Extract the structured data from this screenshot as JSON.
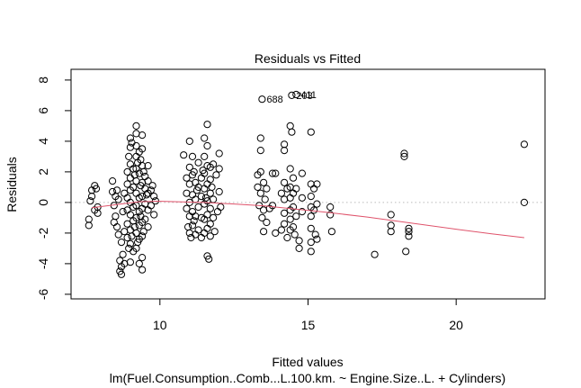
{
  "chart_data": {
    "type": "scatter",
    "title": "Residuals vs Fitted",
    "xlabel": "Fitted values",
    "ylabel": "Residuals",
    "subtitle": "lm(Fuel.Consumption..Comb...L.100.km. ~ Engine.Size..L. + Cylinders)",
    "xlim": [
      7,
      23
    ],
    "ylim": [
      -6.3,
      8.7
    ],
    "x_ticks": [
      10,
      15,
      20
    ],
    "y_ticks": [
      -6,
      -4,
      -2,
      0,
      2,
      4,
      6,
      8
    ],
    "reference_line": {
      "y": 0,
      "style": "dotted",
      "color": "#bbbbbb"
    },
    "smooth": {
      "color": "#df536b",
      "x": [
        7.7,
        8.5,
        9.3,
        9.9,
        10.6,
        11.5,
        12.5,
        13.5,
        14.5,
        15.5,
        17.0,
        18.5,
        20.0,
        21.2,
        22.3
      ],
      "y": [
        -0.35,
        -0.15,
        0.05,
        0.08,
        0.05,
        0.0,
        -0.1,
        -0.22,
        -0.42,
        -0.62,
        -0.95,
        -1.35,
        -1.75,
        -2.05,
        -2.3
      ]
    },
    "outlier_labels": [
      {
        "text": "688",
        "x": 13.45,
        "y": 6.75
      },
      {
        "text": "203",
        "x": 14.45,
        "y": 7.0
      },
      {
        "text": "411",
        "x": 14.6,
        "y": 7.05
      }
    ],
    "series": [
      {
        "points": [
          [
            7.6,
            -1.1
          ],
          [
            7.6,
            -1.5
          ],
          [
            7.65,
            0.1
          ],
          [
            7.7,
            0.8
          ],
          [
            7.7,
            0.4
          ],
          [
            7.8,
            1.1
          ],
          [
            7.8,
            -0.5
          ],
          [
            7.85,
            0.9
          ],
          [
            7.9,
            -0.3
          ],
          [
            7.9,
            -0.7
          ],
          [
            8.4,
            0.7
          ],
          [
            8.4,
            1.4
          ],
          [
            8.45,
            -0.2
          ],
          [
            8.45,
            -1.3
          ],
          [
            8.5,
            0.4
          ],
          [
            8.5,
            -0.9
          ],
          [
            8.55,
            0.8
          ],
          [
            8.55,
            -1.6
          ],
          [
            8.6,
            0.2
          ],
          [
            8.6,
            -2.1
          ],
          [
            8.65,
            -4.5
          ],
          [
            8.65,
            -3.8
          ],
          [
            8.7,
            -4.2
          ],
          [
            8.7,
            -4.7
          ],
          [
            8.7,
            -2.6
          ],
          [
            8.75,
            -3.4
          ],
          [
            8.75,
            -0.6
          ],
          [
            8.8,
            -1.9
          ],
          [
            8.8,
            0.6
          ],
          [
            8.8,
            -4.0
          ],
          [
            8.9,
            2.0
          ],
          [
            8.9,
            1.2
          ],
          [
            8.9,
            0.3
          ],
          [
            8.9,
            -0.5
          ],
          [
            8.9,
            -1.4
          ],
          [
            8.9,
            -2.3
          ],
          [
            8.95,
            3.0
          ],
          [
            8.95,
            -3.0
          ],
          [
            9.0,
            4.2
          ],
          [
            9.0,
            3.6
          ],
          [
            9.0,
            2.5
          ],
          [
            9.0,
            1.6
          ],
          [
            9.0,
            0.8
          ],
          [
            9.0,
            0.0
          ],
          [
            9.0,
            -0.8
          ],
          [
            9.0,
            -1.8
          ],
          [
            9.0,
            -2.7
          ],
          [
            9.0,
            -3.9
          ],
          [
            9.05,
            3.9
          ],
          [
            9.05,
            -2.2
          ],
          [
            9.1,
            2.2
          ],
          [
            9.1,
            1.0
          ],
          [
            9.1,
            -0.3
          ],
          [
            9.1,
            -1.2
          ],
          [
            9.1,
            -3.2
          ],
          [
            9.15,
            1.8
          ],
          [
            9.15,
            -1.6
          ],
          [
            9.2,
            5.0
          ],
          [
            9.2,
            4.5
          ],
          [
            9.2,
            3.7
          ],
          [
            9.2,
            3.0
          ],
          [
            9.2,
            2.2
          ],
          [
            9.2,
            1.4
          ],
          [
            9.2,
            0.6
          ],
          [
            9.2,
            -0.2
          ],
          [
            9.2,
            -1.0
          ],
          [
            9.2,
            -2.0
          ],
          [
            9.2,
            -3.0
          ],
          [
            9.25,
            2.6
          ],
          [
            9.25,
            -2.6
          ],
          [
            9.3,
            3.3
          ],
          [
            9.3,
            1.9
          ],
          [
            9.3,
            0.3
          ],
          [
            9.3,
            -0.6
          ],
          [
            9.3,
            -1.5
          ],
          [
            9.3,
            -2.4
          ],
          [
            9.3,
            -4.0
          ],
          [
            9.35,
            2.8
          ],
          [
            9.35,
            1.1
          ],
          [
            9.35,
            -0.9
          ],
          [
            9.4,
            4.4
          ],
          [
            9.4,
            3.5
          ],
          [
            9.4,
            2.4
          ],
          [
            9.4,
            1.3
          ],
          [
            9.4,
            0.4
          ],
          [
            9.4,
            -0.4
          ],
          [
            9.4,
            -1.3
          ],
          [
            9.4,
            -2.2
          ],
          [
            9.4,
            -3.6
          ],
          [
            9.4,
            -4.4
          ],
          [
            9.45,
            2.0
          ],
          [
            9.45,
            -1.9
          ],
          [
            9.5,
            1.7
          ],
          [
            9.5,
            0.9
          ],
          [
            9.5,
            -0.1
          ],
          [
            9.5,
            -1.1
          ],
          [
            9.55,
            0.5
          ],
          [
            9.6,
            2.4
          ],
          [
            9.6,
            1.4
          ],
          [
            9.6,
            0.6
          ],
          [
            9.6,
            -0.5
          ],
          [
            9.6,
            -1.6
          ],
          [
            9.7,
            0.8
          ],
          [
            9.7,
            -0.2
          ],
          [
            9.75,
            1.1
          ],
          [
            9.8,
            0.4
          ],
          [
            9.8,
            -0.8
          ],
          [
            9.85,
            0.1
          ],
          [
            10.8,
            3.1
          ],
          [
            10.9,
            1.6
          ],
          [
            10.9,
            0.6
          ],
          [
            10.9,
            -0.4
          ],
          [
            10.95,
            -1.6
          ],
          [
            11.0,
            4.0
          ],
          [
            11.0,
            2.3
          ],
          [
            11.0,
            1.2
          ],
          [
            11.0,
            0.0
          ],
          [
            11.0,
            -0.9
          ],
          [
            11.0,
            -2.0
          ],
          [
            11.05,
            -2.3
          ],
          [
            11.1,
            3.0
          ],
          [
            11.1,
            1.8
          ],
          [
            11.1,
            0.5
          ],
          [
            11.1,
            -0.6
          ],
          [
            11.1,
            -1.5
          ],
          [
            11.15,
            2.0
          ],
          [
            11.15,
            -1.2
          ],
          [
            11.2,
            1.3
          ],
          [
            11.2,
            0.2
          ],
          [
            11.2,
            -0.9
          ],
          [
            11.2,
            -2.1
          ],
          [
            11.25,
            0.8
          ],
          [
            11.3,
            2.6
          ],
          [
            11.3,
            1.0
          ],
          [
            11.3,
            -0.3
          ],
          [
            11.3,
            -1.8
          ],
          [
            11.4,
            1.6
          ],
          [
            11.4,
            0.4
          ],
          [
            11.4,
            -1.0
          ],
          [
            11.4,
            -2.3
          ],
          [
            11.45,
            2.1
          ],
          [
            11.5,
            4.2
          ],
          [
            11.5,
            3.0
          ],
          [
            11.5,
            1.9
          ],
          [
            11.5,
            0.9
          ],
          [
            11.5,
            -0.1
          ],
          [
            11.5,
            -1.1
          ],
          [
            11.5,
            -2.0
          ],
          [
            11.55,
            0.3
          ],
          [
            11.6,
            5.1
          ],
          [
            11.6,
            3.7
          ],
          [
            11.6,
            2.4
          ],
          [
            11.6,
            1.2
          ],
          [
            11.6,
            0.1
          ],
          [
            11.6,
            -0.8
          ],
          [
            11.6,
            -1.7
          ],
          [
            11.6,
            -3.5
          ],
          [
            11.65,
            -3.7
          ],
          [
            11.7,
            2.3
          ],
          [
            11.7,
            1.5
          ],
          [
            11.7,
            0.6
          ],
          [
            11.7,
            -0.4
          ],
          [
            11.7,
            -1.4
          ],
          [
            11.7,
            -2.2
          ],
          [
            11.75,
            1.0
          ],
          [
            11.8,
            2.5
          ],
          [
            11.8,
            0.2
          ],
          [
            11.8,
            -1.0
          ],
          [
            11.85,
            -1.9
          ],
          [
            11.9,
            1.8
          ],
          [
            11.95,
            -0.6
          ],
          [
            12.0,
            2.2
          ],
          [
            12.0,
            3.2
          ],
          [
            12.0,
            0.7
          ],
          [
            12.05,
            -0.3
          ],
          [
            13.3,
            1.8
          ],
          [
            13.3,
            1.0
          ],
          [
            13.35,
            -0.2
          ],
          [
            13.4,
            4.2
          ],
          [
            13.4,
            3.4
          ],
          [
            13.4,
            2.0
          ],
          [
            13.4,
            0.6
          ],
          [
            13.45,
            -1.0
          ],
          [
            13.5,
            1.3
          ],
          [
            13.5,
            -0.5
          ],
          [
            13.5,
            -1.9
          ],
          [
            13.55,
            0.2
          ],
          [
            13.6,
            0.9
          ],
          [
            13.6,
            -1.3
          ],
          [
            13.7,
            -0.4
          ],
          [
            13.8,
            1.9
          ],
          [
            13.8,
            -0.2
          ],
          [
            13.9,
            1.9
          ],
          [
            13.9,
            -2.0
          ],
          [
            14.1,
            0.6
          ],
          [
            14.1,
            -1.8
          ],
          [
            14.2,
            3.8
          ],
          [
            14.2,
            3.4
          ],
          [
            14.2,
            1.3
          ],
          [
            14.2,
            0.2
          ],
          [
            14.2,
            -0.7
          ],
          [
            14.2,
            -1.4
          ],
          [
            14.3,
            0.9
          ],
          [
            14.3,
            -2.3
          ],
          [
            14.4,
            5.0
          ],
          [
            14.4,
            2.2
          ],
          [
            14.4,
            1.0
          ],
          [
            14.4,
            0.3
          ],
          [
            14.4,
            -0.5
          ],
          [
            14.4,
            -1.1
          ],
          [
            14.4,
            -1.8
          ],
          [
            14.45,
            4.6
          ],
          [
            14.5,
            1.6
          ],
          [
            14.5,
            0.6
          ],
          [
            14.5,
            -0.3
          ],
          [
            14.5,
            -1.6
          ],
          [
            14.55,
            -2.1
          ],
          [
            14.6,
            0.9
          ],
          [
            14.6,
            -0.9
          ],
          [
            14.7,
            -2.5
          ],
          [
            14.7,
            -3.0
          ],
          [
            14.8,
            1.9
          ],
          [
            14.8,
            0.3
          ],
          [
            14.8,
            -0.6
          ],
          [
            15.1,
            4.6
          ],
          [
            15.1,
            1.2
          ],
          [
            15.1,
            0.4
          ],
          [
            15.1,
            -0.3
          ],
          [
            15.1,
            -0.9
          ],
          [
            15.1,
            -1.7
          ],
          [
            15.1,
            -2.6
          ],
          [
            15.1,
            -3.2
          ],
          [
            15.2,
            0.9
          ],
          [
            15.2,
            -0.5
          ],
          [
            15.25,
            -2.1
          ],
          [
            15.3,
            1.2
          ],
          [
            15.3,
            -0.1
          ],
          [
            15.3,
            -2.4
          ],
          [
            15.75,
            -0.3
          ],
          [
            15.75,
            -0.8
          ],
          [
            15.8,
            -1.9
          ],
          [
            17.25,
            -3.4
          ],
          [
            17.8,
            -0.8
          ],
          [
            17.8,
            -1.5
          ],
          [
            17.8,
            -1.9
          ],
          [
            18.25,
            3.2
          ],
          [
            18.25,
            3.0
          ],
          [
            18.3,
            -3.2
          ],
          [
            18.4,
            -1.7
          ],
          [
            18.4,
            -2.2
          ],
          [
            18.4,
            -1.9
          ],
          [
            22.3,
            3.8
          ],
          [
            22.3,
            0.0
          ],
          [
            13.45,
            6.75
          ],
          [
            14.45,
            7.0
          ],
          [
            14.6,
            7.05
          ]
        ]
      }
    ]
  }
}
